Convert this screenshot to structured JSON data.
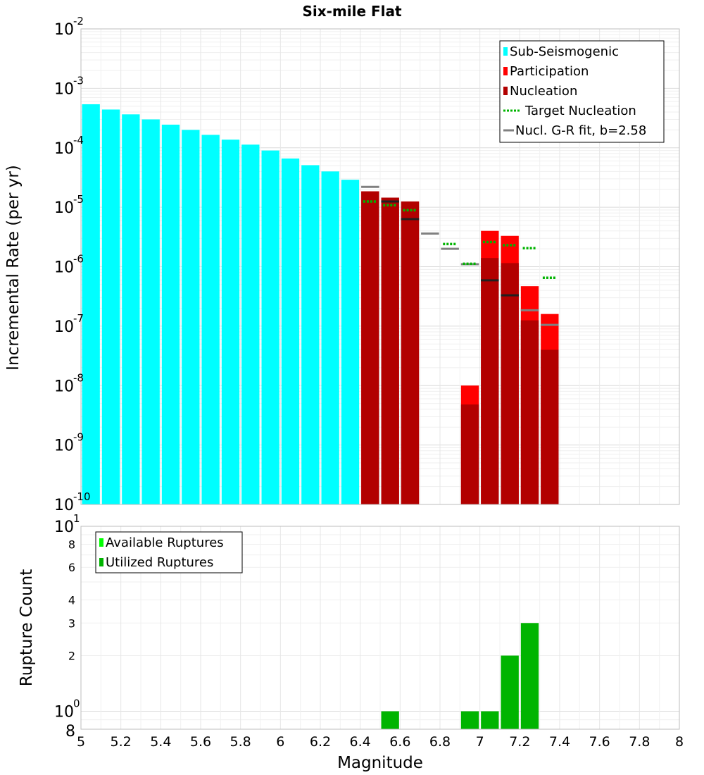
{
  "chart_data": {
    "type": "bar",
    "title": "Six-mile Flat",
    "xlabel": "Magnitude",
    "xlim": [
      5,
      8
    ],
    "x_ticks": [
      "5",
      "5.2",
      "5.4",
      "5.6",
      "5.8",
      "6",
      "6.2",
      "6.4",
      "6.6",
      "6.8",
      "7",
      "7.2",
      "7.4",
      "7.6",
      "7.8",
      "8"
    ],
    "bin_width": 0.1,
    "top_panel": {
      "ylabel": "Incremental Rate (per yr)",
      "yscale": "log",
      "ylim": [
        1e-10,
        0.01
      ],
      "y_ticks": [
        {
          "base": "10",
          "exp": "-2",
          "value": 0.01
        },
        {
          "base": "10",
          "exp": "-3",
          "value": 0.001
        },
        {
          "base": "10",
          "exp": "-4",
          "value": 0.0001
        },
        {
          "base": "10",
          "exp": "-5",
          "value": 1e-05
        },
        {
          "base": "10",
          "exp": "-6",
          "value": 1e-06
        },
        {
          "base": "10",
          "exp": "-7",
          "value": 1e-07
        },
        {
          "base": "10",
          "exp": "-8",
          "value": 1e-08
        },
        {
          "base": "10",
          "exp": "-9",
          "value": 1e-09
        },
        {
          "base": "10",
          "exp": "-10",
          "value": 1e-10
        }
      ],
      "legend": [
        {
          "label": "Sub-Seismogenic",
          "color": "#00ffff",
          "kind": "box"
        },
        {
          "label": "Participation",
          "color": "#ff0000",
          "kind": "box"
        },
        {
          "label": "Nucleation",
          "color": "#b20000",
          "kind": "box"
        },
        {
          "label": "Target Nucleation",
          "color": "#00b400",
          "kind": "dotted"
        },
        {
          "label": "Nucl. G-R fit, b=2.58",
          "color": "#808080",
          "kind": "line"
        }
      ],
      "series": [
        {
          "name": "Sub-Seismogenic",
          "color": "#00ffff",
          "x": [
            5.05,
            5.15,
            5.25,
            5.35,
            5.45,
            5.55,
            5.65,
            5.75,
            5.85,
            5.95,
            6.05,
            6.15,
            6.25,
            6.35
          ],
          "values": [
            0.00054,
            0.00044,
            0.000365,
            0.0003,
            0.000245,
            0.0002,
            0.000165,
            0.000137,
            0.000113,
            9e-05,
            6.6e-05,
            5.1e-05,
            4e-05,
            2.9e-05
          ]
        },
        {
          "name": "Participation",
          "color": "#ff0000",
          "x": [
            6.45,
            6.55,
            6.65,
            6.95,
            7.05,
            7.15,
            7.25,
            7.35
          ],
          "values": [
            1.85e-05,
            1.45e-05,
            1.25e-05,
            1e-08,
            4e-06,
            3.3e-06,
            4.7e-07,
            1.6e-07
          ]
        },
        {
          "name": "Nucleation",
          "color": "#b20000",
          "x": [
            6.45,
            6.55,
            6.65,
            6.95,
            7.05,
            7.15,
            7.25,
            7.35
          ],
          "values": [
            1.85e-05,
            1.45e-05,
            1.25e-05,
            4.8e-09,
            1.4e-06,
            1.15e-06,
            1.25e-07,
            4e-08
          ]
        },
        {
          "name": "Target Nucleation",
          "color": "#00b400",
          "x": [
            6.45,
            6.55,
            6.65,
            6.85,
            6.95,
            7.05,
            7.15,
            7.25,
            7.35
          ],
          "values": [
            1.25e-05,
            1.08e-05,
            8.9e-06,
            2.4e-06,
            1.12e-06,
            2.6e-06,
            2.3e-06,
            2.05e-06,
            6.5e-07
          ]
        },
        {
          "name": "Nucl. G-R fit, b=2.58",
          "color": "#808080",
          "x": [
            6.45,
            6.55,
            6.65,
            6.75,
            6.85,
            6.95,
            7.05,
            7.15,
            7.25,
            7.35
          ],
          "values": [
            2.2e-05,
            1.25e-05,
            6.3e-06,
            3.6e-06,
            2e-06,
            1.1e-06,
            5.9e-07,
            3.3e-07,
            1.85e-07,
            1.05e-07
          ]
        }
      ]
    },
    "bottom_panel": {
      "ylabel": "Rupture Count",
      "yscale": "log",
      "ylim": [
        0.8,
        10
      ],
      "y_ticks_major": [
        {
          "base": "10",
          "exp": "1",
          "value": 10
        },
        {
          "base": "10",
          "exp": "0",
          "value": 1
        }
      ],
      "y_ticks_minor": [
        {
          "label": "8",
          "value": 8
        },
        {
          "label": "6",
          "value": 6
        },
        {
          "label": "4",
          "value": 4
        },
        {
          "label": "3",
          "value": 3
        },
        {
          "label": "2",
          "value": 2
        },
        {
          "label": "8",
          "value": 0.8
        }
      ],
      "legend": [
        {
          "label": "Available Ruptures",
          "color": "#00ff00"
        },
        {
          "label": "Utilized Ruptures",
          "color": "#00b400"
        }
      ],
      "series": [
        {
          "name": "Utilized Ruptures",
          "color": "#00b400",
          "x": [
            6.55,
            6.95,
            7.05,
            7.15,
            7.25
          ],
          "values": [
            1,
            1,
            1,
            2,
            3
          ]
        }
      ]
    }
  }
}
